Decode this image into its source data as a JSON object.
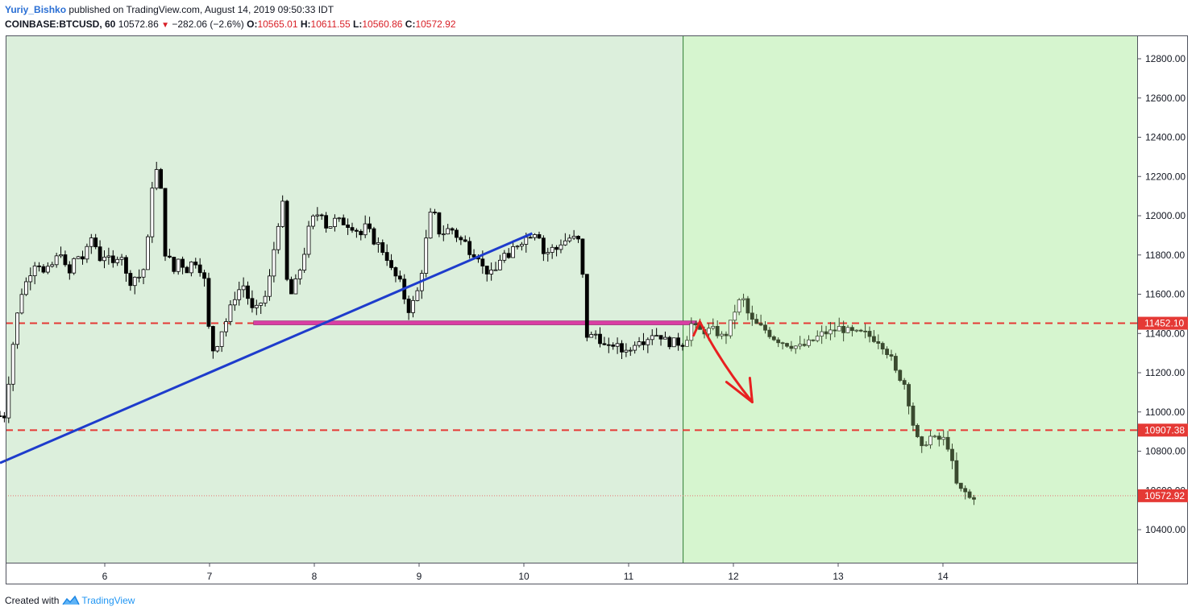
{
  "header": {
    "author": "Yuriy_Bishko",
    "published_text": "published on TradingView.com, August 14, 2019 09:50:33 IDT",
    "symbol": "COINBASE:BTCUSD, 60",
    "last": "10572.86",
    "change": "−282.06 (−2.6%)",
    "open_label": "O:",
    "open": "10565.01",
    "high_label": "H:",
    "high": "10611.55",
    "low_label": "L:",
    "low": "10560.86",
    "close_label": "C:",
    "close": "10572.92"
  },
  "footer": {
    "created_with": "Created with",
    "brand": "TradingView"
  },
  "colors": {
    "bg_history": "#dcefdc",
    "bg_forecast": "#d6f5cf",
    "trendline": "#1e3ccc",
    "support_zone": "#d93ea3",
    "level_line": "#e53935",
    "arrow": "#e82020",
    "candle_hist": "#000000",
    "candle_forecast": "#3a4a2f",
    "price_label_bg": "#e53935"
  },
  "chart_data": {
    "type": "candlestick",
    "price_axis": [
      "12800.00",
      "12600.00",
      "12400.00",
      "12200.00",
      "12000.00",
      "11800.00",
      "11600.00",
      "11400.00",
      "11200.00",
      "11000.00",
      "10800.00",
      "10600.00",
      "10400.00"
    ],
    "x_ticks": [
      "6",
      "7",
      "8",
      "9",
      "10",
      "11",
      "12",
      "13",
      "14"
    ],
    "ylim": [
      10250,
      12880
    ],
    "levels": [
      {
        "label": "11452.10",
        "price": 11452.1
      },
      {
        "label": "10907.38",
        "price": 10907.38
      }
    ],
    "last_price": {
      "label": "10572.92",
      "price": 10572.92
    },
    "trendline": {
      "from": {
        "day": 5.0,
        "price": 10740
      },
      "to": {
        "day": 10.08,
        "price": 11910
      }
    },
    "support_zone": {
      "from_day": 7.42,
      "to_day": 11.65,
      "price": 11452
    },
    "forecast_start_day": 11.52,
    "price_path": [
      [
        5.0,
        10980
      ],
      [
        5.05,
        10980
      ],
      [
        5.1,
        11250
      ],
      [
        5.15,
        11450
      ],
      [
        5.2,
        11600
      ],
      [
        5.28,
        11700
      ],
      [
        5.35,
        11780
      ],
      [
        5.42,
        11700
      ],
      [
        5.5,
        11750
      ],
      [
        5.58,
        11820
      ],
      [
        5.65,
        11680
      ],
      [
        5.72,
        11800
      ],
      [
        5.8,
        11780
      ],
      [
        5.88,
        11900
      ],
      [
        5.95,
        11780
      ],
      [
        6.0,
        11800
      ],
      [
        6.08,
        11750
      ],
      [
        6.15,
        11830
      ],
      [
        6.2,
        11700
      ],
      [
        6.25,
        11660
      ],
      [
        6.3,
        11700
      ],
      [
        6.35,
        11680
      ],
      [
        6.4,
        11800
      ],
      [
        6.45,
        12150
      ],
      [
        6.5,
        12240
      ],
      [
        6.53,
        12250
      ],
      [
        6.55,
        11800
      ],
      [
        6.6,
        11820
      ],
      [
        6.65,
        11700
      ],
      [
        6.7,
        11780
      ],
      [
        6.78,
        11720
      ],
      [
        6.85,
        11780
      ],
      [
        6.92,
        11720
      ],
      [
        6.97,
        11640
      ],
      [
        7.0,
        11350
      ],
      [
        7.05,
        11300
      ],
      [
        7.1,
        11400
      ],
      [
        7.15,
        11450
      ],
      [
        7.2,
        11530
      ],
      [
        7.25,
        11600
      ],
      [
        7.32,
        11650
      ],
      [
        7.38,
        11560
      ],
      [
        7.42,
        11500
      ],
      [
        7.48,
        11550
      ],
      [
        7.55,
        11600
      ],
      [
        7.6,
        11780
      ],
      [
        7.65,
        11950
      ],
      [
        7.7,
        12060
      ],
      [
        7.72,
        11700
      ],
      [
        7.78,
        11600
      ],
      [
        7.85,
        11700
      ],
      [
        7.9,
        11800
      ],
      [
        7.95,
        11940
      ],
      [
        8.0,
        12000
      ],
      [
        8.08,
        12020
      ],
      [
        8.12,
        11930
      ],
      [
        8.2,
        11980
      ],
      [
        8.3,
        11960
      ],
      [
        8.38,
        11940
      ],
      [
        8.45,
        11900
      ],
      [
        8.5,
        11960
      ],
      [
        8.55,
        11880
      ],
      [
        8.62,
        11850
      ],
      [
        8.7,
        11780
      ],
      [
        8.75,
        11700
      ],
      [
        8.8,
        11680
      ],
      [
        8.85,
        11620
      ],
      [
        8.88,
        11500
      ],
      [
        8.92,
        11540
      ],
      [
        8.97,
        11580
      ],
      [
        9.02,
        11700
      ],
      [
        9.06,
        11850
      ],
      [
        9.1,
        12000
      ],
      [
        9.14,
        12020
      ],
      [
        9.2,
        11900
      ],
      [
        9.3,
        11940
      ],
      [
        9.38,
        11880
      ],
      [
        9.45,
        11860
      ],
      [
        9.5,
        11800
      ],
      [
        9.55,
        11820
      ],
      [
        9.6,
        11740
      ],
      [
        9.68,
        11700
      ],
      [
        9.73,
        11720
      ],
      [
        9.8,
        11820
      ],
      [
        9.85,
        11760
      ],
      [
        9.9,
        11840
      ],
      [
        9.95,
        11860
      ],
      [
        10.0,
        11880
      ],
      [
        10.05,
        11900
      ],
      [
        10.1,
        11920
      ],
      [
        10.15,
        11900
      ],
      [
        10.2,
        11780
      ],
      [
        10.25,
        11840
      ],
      [
        10.3,
        11820
      ],
      [
        10.35,
        11860
      ],
      [
        10.45,
        11890
      ],
      [
        10.5,
        11880
      ],
      [
        10.55,
        11860
      ],
      [
        10.58,
        11400
      ],
      [
        10.62,
        11380
      ],
      [
        10.7,
        11400
      ],
      [
        10.75,
        11340
      ],
      [
        10.82,
        11320
      ],
      [
        10.87,
        11360
      ],
      [
        10.92,
        11300
      ],
      [
        10.97,
        11330
      ],
      [
        11.02,
        11310
      ],
      [
        11.08,
        11380
      ],
      [
        11.15,
        11360
      ],
      [
        11.22,
        11400
      ],
      [
        11.3,
        11390
      ],
      [
        11.38,
        11350
      ],
      [
        11.45,
        11360
      ],
      [
        11.5,
        11340
      ],
      [
        11.55,
        11370
      ],
      [
        11.6,
        11450
      ],
      [
        11.65,
        11420
      ],
      [
        11.7,
        11410
      ],
      [
        11.8,
        11420
      ],
      [
        11.9,
        11380
      ],
      [
        11.95,
        11410
      ],
      [
        12.0,
        11500
      ],
      [
        12.05,
        11560
      ],
      [
        12.1,
        11570
      ],
      [
        12.15,
        11480
      ],
      [
        12.2,
        11450
      ],
      [
        12.3,
        11420
      ],
      [
        12.38,
        11380
      ],
      [
        12.45,
        11360
      ],
      [
        12.55,
        11340
      ],
      [
        12.65,
        11330
      ],
      [
        12.75,
        11360
      ],
      [
        12.85,
        11400
      ],
      [
        12.95,
        11410
      ],
      [
        13.0,
        11430
      ],
      [
        13.05,
        11420
      ],
      [
        13.15,
        11400
      ],
      [
        13.25,
        11400
      ],
      [
        13.32,
        11380
      ],
      [
        13.4,
        11360
      ],
      [
        13.45,
        11320
      ],
      [
        13.5,
        11280
      ],
      [
        13.55,
        11200
      ],
      [
        13.6,
        11170
      ],
      [
        13.65,
        11130
      ],
      [
        13.7,
        10960
      ],
      [
        13.74,
        10900
      ],
      [
        13.78,
        10800
      ],
      [
        13.82,
        10820
      ],
      [
        13.86,
        10880
      ],
      [
        13.92,
        10860
      ],
      [
        13.98,
        10860
      ],
      [
        14.03,
        10860
      ],
      [
        14.08,
        10760
      ],
      [
        14.12,
        10640
      ],
      [
        14.16,
        10600
      ],
      [
        14.2,
        10600
      ],
      [
        14.25,
        10560
      ],
      [
        14.3,
        10570
      ],
      [
        14.32,
        10575
      ]
    ]
  },
  "annotations": {
    "forecast_arrow": {
      "from": {
        "day": 11.62,
        "price": 11390
      },
      "peak": {
        "day": 11.68,
        "price": 11460
      },
      "to": {
        "day": 12.18,
        "price": 11050
      }
    }
  }
}
